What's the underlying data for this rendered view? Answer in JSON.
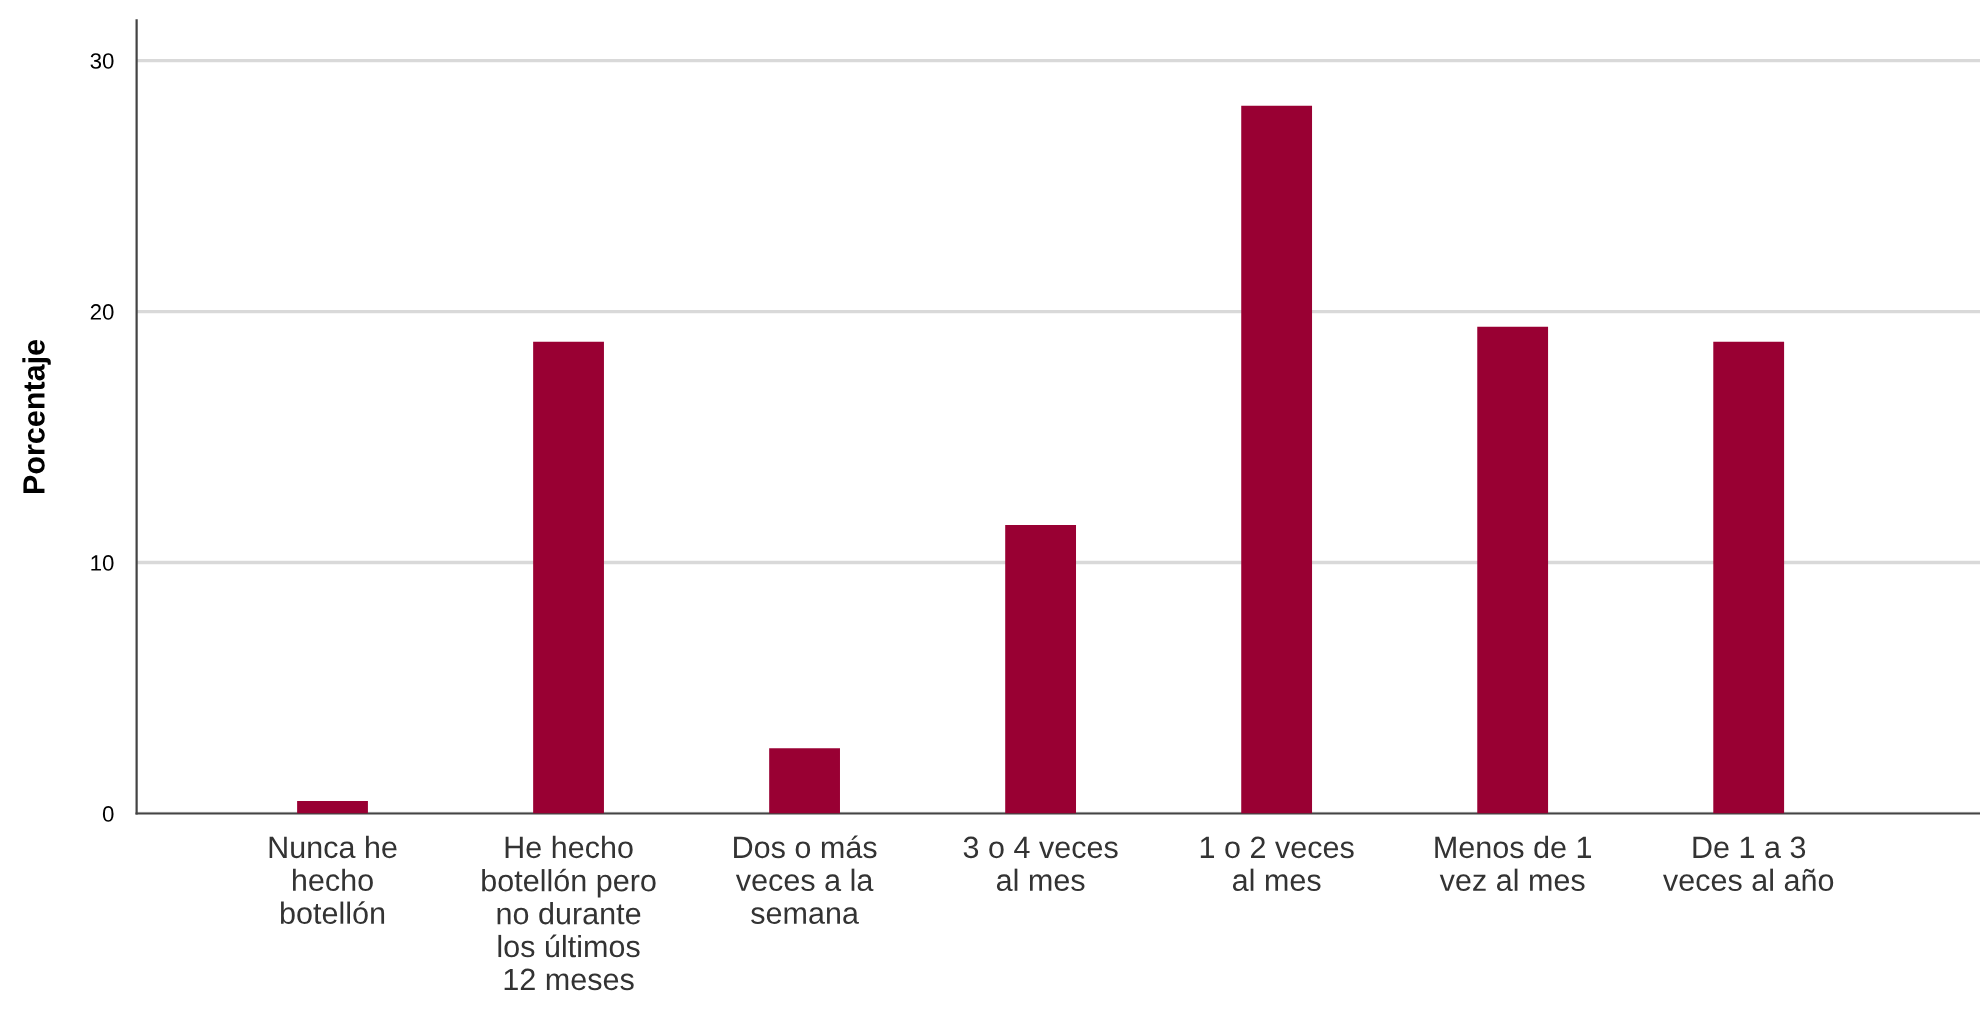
{
  "chart_data": {
    "type": "bar",
    "ylabel": "Porcentaje",
    "categories": [
      "Nunca he\nhecho\nbotellón",
      "He hecho\nbotellón pero\nno durante\nlos últimos\n12 meses",
      "Dos o más\nveces a la\nsemana",
      "3 o 4 veces\nal mes",
      "1 o 2 veces\nal mes",
      "Menos de 1\nvez al mes",
      "De 1 a 3\nveces al año"
    ],
    "values": [
      0.5,
      18.8,
      2.6,
      11.5,
      28.2,
      19.4,
      18.8
    ],
    "color": "#990033",
    "ylim": [
      0,
      31.6
    ],
    "yticks": [
      0,
      10,
      20,
      30
    ],
    "grid": "y",
    "legend": false
  }
}
